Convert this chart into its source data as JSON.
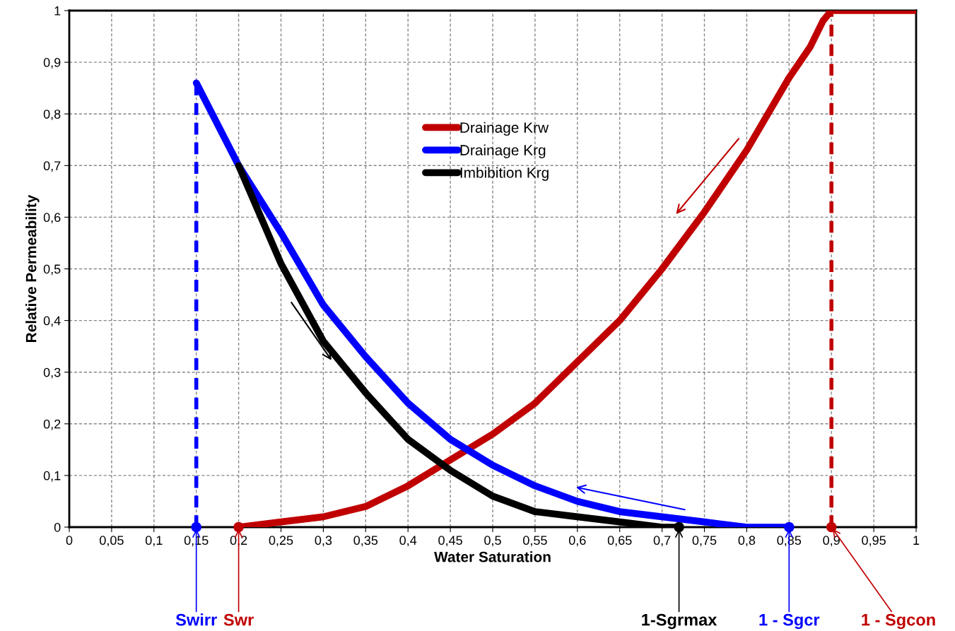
{
  "chart_data": {
    "type": "line",
    "xlabel": "Water Saturation",
    "ylabel": "Relative Permeability",
    "xlim": [
      0,
      1
    ],
    "ylim": [
      0,
      1
    ],
    "xticks": [
      {
        "value": 0,
        "label": "0"
      },
      {
        "value": 0.05,
        "label": "0,05"
      },
      {
        "value": 0.1,
        "label": "0,1"
      },
      {
        "value": 0.15,
        "label": "0,15"
      },
      {
        "value": 0.2,
        "label": "0,2"
      },
      {
        "value": 0.25,
        "label": "0,25"
      },
      {
        "value": 0.3,
        "label": "0,3"
      },
      {
        "value": 0.35,
        "label": "0,35"
      },
      {
        "value": 0.4,
        "label": "0,4"
      },
      {
        "value": 0.45,
        "label": "0,45"
      },
      {
        "value": 0.5,
        "label": "0,5"
      },
      {
        "value": 0.55,
        "label": "0,55"
      },
      {
        "value": 0.6,
        "label": "0,6"
      },
      {
        "value": 0.65,
        "label": "0,65"
      },
      {
        "value": 0.7,
        "label": "0,7"
      },
      {
        "value": 0.75,
        "label": "0,75"
      },
      {
        "value": 0.8,
        "label": "0,8"
      },
      {
        "value": 0.85,
        "label": "0,85"
      },
      {
        "value": 0.9,
        "label": "0,9"
      },
      {
        "value": 0.95,
        "label": "0,95"
      },
      {
        "value": 1,
        "label": "1"
      }
    ],
    "yticks": [
      {
        "value": 0,
        "label": "0"
      },
      {
        "value": 0.1,
        "label": "0,1"
      },
      {
        "value": 0.2,
        "label": "0,2"
      },
      {
        "value": 0.3,
        "label": "0,3"
      },
      {
        "value": 0.4,
        "label": "0,4"
      },
      {
        "value": 0.5,
        "label": "0,5"
      },
      {
        "value": 0.6,
        "label": "0,6"
      },
      {
        "value": 0.7,
        "label": "0,7"
      },
      {
        "value": 0.8,
        "label": "0,8"
      },
      {
        "value": 0.9,
        "label": "0,9"
      },
      {
        "value": 1,
        "label": "1"
      }
    ],
    "grid": true,
    "legend": "top",
    "marker": "none",
    "line_style": "solid",
    "series": [
      {
        "name": "Drainage Krw",
        "color": "#c00000",
        "x": [
          0.2,
          0.25,
          0.3,
          0.35,
          0.4,
          0.45,
          0.5,
          0.55,
          0.6,
          0.65,
          0.7,
          0.75,
          0.8,
          0.85,
          0.875,
          0.89,
          0.9,
          0.95,
          1.0
        ],
        "values": [
          0,
          0.01,
          0.02,
          0.04,
          0.08,
          0.13,
          0.18,
          0.24,
          0.32,
          0.4,
          0.5,
          0.61,
          0.73,
          0.87,
          0.93,
          0.98,
          1.0,
          1.0,
          1.0
        ]
      },
      {
        "name": "Drainage Krg",
        "color": "#0000ff",
        "x": [
          0.15,
          0.2,
          0.25,
          0.3,
          0.35,
          0.4,
          0.45,
          0.5,
          0.55,
          0.6,
          0.65,
          0.7,
          0.75,
          0.8,
          0.85
        ],
        "values": [
          0.86,
          0.7,
          0.57,
          0.43,
          0.33,
          0.24,
          0.17,
          0.12,
          0.08,
          0.05,
          0.03,
          0.02,
          0.01,
          0,
          0
        ]
      },
      {
        "name": "Imbibition Krg",
        "color": "#000000",
        "x": [
          0.2,
          0.25,
          0.3,
          0.35,
          0.4,
          0.45,
          0.5,
          0.55,
          0.6,
          0.65,
          0.7,
          0.72
        ],
        "values": [
          0.7,
          0.51,
          0.36,
          0.26,
          0.17,
          0.11,
          0.06,
          0.03,
          0.02,
          0.01,
          0,
          0
        ]
      },
      {
        "color": "#0000ff",
        "line_style": "dashed",
        "x": [
          0.15,
          0.15
        ],
        "values": [
          0,
          0.86
        ]
      },
      {
        "color": "#c00000",
        "line_style": "dashed",
        "x": [
          0.9,
          0.9
        ],
        "values": [
          0,
          1
        ]
      },
      {
        "type": "scatter",
        "marker": "circle",
        "x": [
          0.15,
          0.2,
          0.72,
          0.85,
          0.9
        ],
        "values": [
          0,
          0,
          0,
          0,
          0
        ],
        "colors": [
          "#0000ff",
          "#c00000",
          "#000000",
          "#0000ff",
          "#c00000"
        ]
      }
    ],
    "annotations": [
      {
        "text": "Swirr",
        "x": 0.15,
        "y": 0
      },
      {
        "text": "Swr",
        "x": 0.2,
        "y": 0
      },
      {
        "text": "1-Sgrmax",
        "x": 0.72,
        "y": 0
      },
      {
        "text": "1 - Sgcr",
        "x": 0.85,
        "y": 0
      },
      {
        "text": "1 - Sgcon",
        "x": 0.9,
        "y": 0
      }
    ]
  }
}
